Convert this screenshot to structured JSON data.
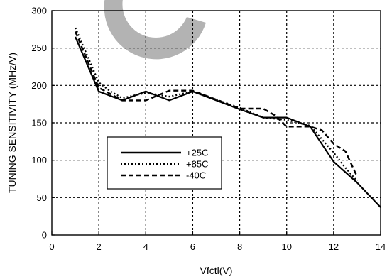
{
  "chart_data": {
    "type": "line",
    "title": "",
    "xlabel": "Vfctl(V)",
    "ylabel": "TUNING SENSITIVITY (MHz/V)",
    "xlim": [
      0,
      14
    ],
    "ylim": [
      0,
      300
    ],
    "xticks": [
      0,
      2,
      4,
      6,
      8,
      10,
      12,
      14
    ],
    "yticks": [
      0,
      50,
      100,
      150,
      200,
      250,
      300
    ],
    "grid": true,
    "legend_position": "lower-left",
    "watermark_color": "#b3b3b3",
    "series": [
      {
        "name": "+25C",
        "style": "solid",
        "color": "#000000",
        "points": [
          [
            1.0,
            265
          ],
          [
            2.0,
            192
          ],
          [
            3.0,
            180
          ],
          [
            4.0,
            192
          ],
          [
            5.0,
            180
          ],
          [
            6.0,
            192
          ],
          [
            7.0,
            180
          ],
          [
            8.0,
            168
          ],
          [
            9.0,
            157
          ],
          [
            10.0,
            157
          ],
          [
            11.0,
            145
          ],
          [
            12.0,
            98
          ],
          [
            13.0,
            70
          ],
          [
            14.0,
            37
          ]
        ]
      },
      {
        "name": "+85C",
        "style": "dotted",
        "color": "#000000",
        "points": [
          [
            1.0,
            277
          ],
          [
            2.0,
            204
          ],
          [
            2.5,
            192
          ],
          [
            3.0,
            183
          ],
          [
            4.0,
            190
          ],
          [
            5.0,
            185
          ],
          [
            6.0,
            192
          ],
          [
            7.0,
            181
          ],
          [
            8.0,
            170
          ],
          [
            9.0,
            157
          ],
          [
            10.0,
            154
          ],
          [
            11.0,
            146
          ],
          [
            12.0,
            110
          ],
          [
            12.5,
            90
          ],
          [
            13.0,
            72
          ]
        ]
      },
      {
        "name": "-40C",
        "style": "dashed",
        "color": "#000000",
        "points": [
          [
            1.0,
            272
          ],
          [
            2.0,
            197
          ],
          [
            3.0,
            180
          ],
          [
            4.0,
            180
          ],
          [
            5.0,
            193
          ],
          [
            6.0,
            193
          ],
          [
            7.0,
            181
          ],
          [
            8.0,
            169
          ],
          [
            9.0,
            169
          ],
          [
            9.5,
            160
          ],
          [
            10.0,
            145
          ],
          [
            11.0,
            145
          ],
          [
            11.5,
            140
          ],
          [
            12.0,
            122
          ],
          [
            12.5,
            112
          ],
          [
            13.0,
            78
          ]
        ]
      }
    ]
  }
}
